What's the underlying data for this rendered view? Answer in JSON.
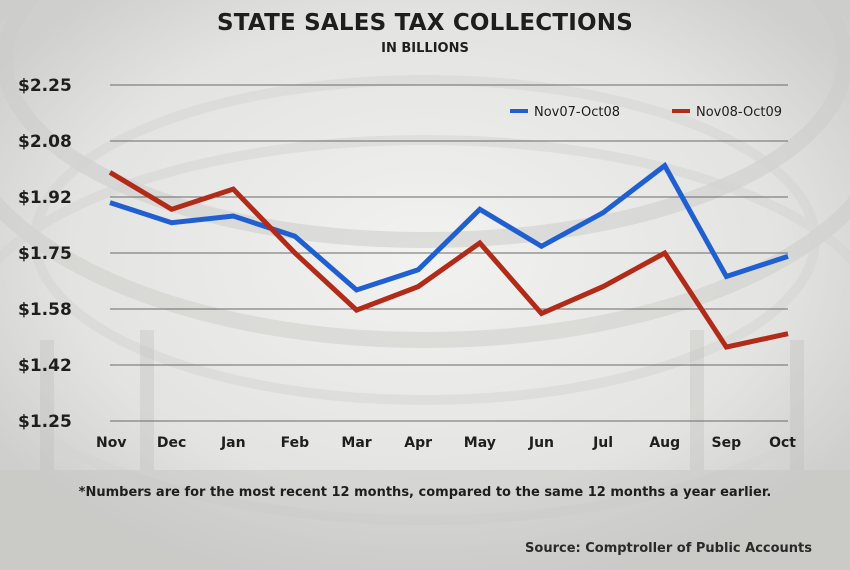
{
  "chart_data": {
    "type": "line",
    "title": "STATE SALES TAX COLLECTIONS",
    "subtitle": "IN BILLIONS",
    "categories": [
      "Nov",
      "Dec",
      "Jan",
      "Feb",
      "Mar",
      "Apr",
      "May",
      "Jun",
      "Jul",
      "Aug",
      "Sep",
      "Oct"
    ],
    "yticks": [
      "$2.25",
      "$2.08",
      "$1.92",
      "$1.75",
      "$1.58",
      "$1.42",
      "$1.25"
    ],
    "ylim": [
      1.25,
      2.25
    ],
    "grid": true,
    "legend_position": "top-right",
    "series": [
      {
        "name": "Nov07-Oct08",
        "color": "#1f5fd1",
        "values": [
          1.9,
          1.84,
          1.86,
          1.8,
          1.64,
          1.7,
          1.88,
          1.77,
          1.87,
          2.01,
          1.68,
          1.74
        ]
      },
      {
        "name": "Nov08-Oct09",
        "color": "#b22a18",
        "values": [
          1.99,
          1.88,
          1.94,
          1.75,
          1.58,
          1.65,
          1.78,
          1.57,
          1.65,
          1.75,
          1.47,
          1.51
        ]
      }
    ],
    "footnote": "*Numbers are for the most recent 12 months,  compared to the same 12 months a year earlier.",
    "source": "Source: Comptroller of Public Accounts"
  }
}
